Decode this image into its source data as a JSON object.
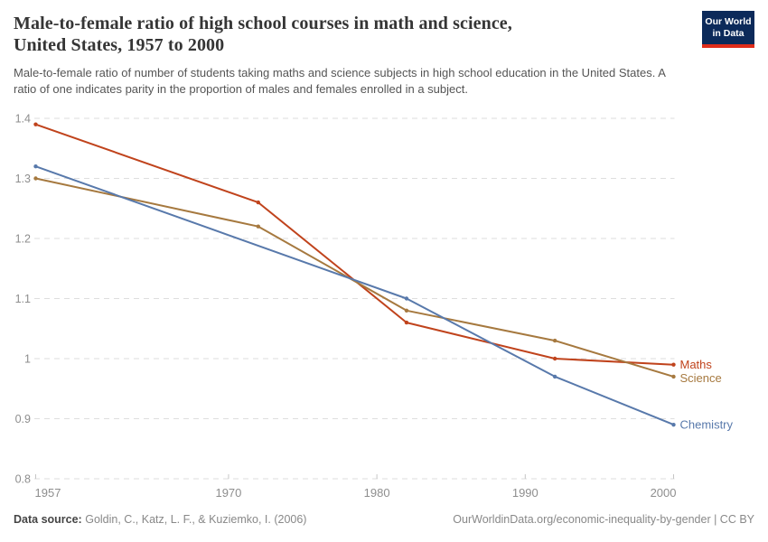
{
  "header": {
    "title_line1": "Male-to-female ratio of high school courses in math and science,",
    "title_line2": "United States, 1957 to 2000",
    "subtitle": "Male-to-female ratio of number of students taking maths and science subjects in high school education in the United States. A ratio of one indicates parity in the proportion of males and females enrolled in a subject."
  },
  "logo": {
    "line1": "Our World",
    "line2": "in Data",
    "bg_color": "#0C2A5A",
    "accent_color": "#E02C1A"
  },
  "chart_data": {
    "type": "line",
    "title": "Male-to-female ratio of high school courses in math and science, United States, 1957 to 2000",
    "xlabel": "",
    "ylabel": "",
    "xlim": [
      1957,
      2000
    ],
    "ylim": [
      0.8,
      1.4
    ],
    "x_ticks": [
      1957,
      1970,
      1980,
      1990,
      2000
    ],
    "y_ticks": [
      0.8,
      0.9,
      1,
      1.1,
      1.2,
      1.3,
      1.4
    ],
    "grid": "horizontal-dashed",
    "legend_position": "line-end-labels",
    "grid_color": "#dedede",
    "tick_label_color": "#8e8e8e",
    "series": [
      {
        "name": "Maths",
        "color": "#C0431C",
        "x": [
          1957,
          1972,
          1982,
          1992,
          2000
        ],
        "values": [
          1.39,
          1.26,
          1.06,
          1.0,
          0.99
        ]
      },
      {
        "name": "Science",
        "color": "#A6793F",
        "x": [
          1957,
          1972,
          1982,
          1992,
          2000
        ],
        "values": [
          1.3,
          1.22,
          1.08,
          1.03,
          0.97
        ]
      },
      {
        "name": "Chemistry",
        "color": "#5879AB",
        "x": [
          1957,
          1982,
          1992,
          2000
        ],
        "values": [
          1.32,
          1.1,
          0.97,
          0.89
        ]
      }
    ]
  },
  "footer": {
    "data_source_label": "Data source:",
    "data_source_value": "Goldin, C., Katz, L. F., & Kuziemko, I. (2006)",
    "attribution": "OurWorldinData.org/economic-inequality-by-gender | CC BY"
  }
}
